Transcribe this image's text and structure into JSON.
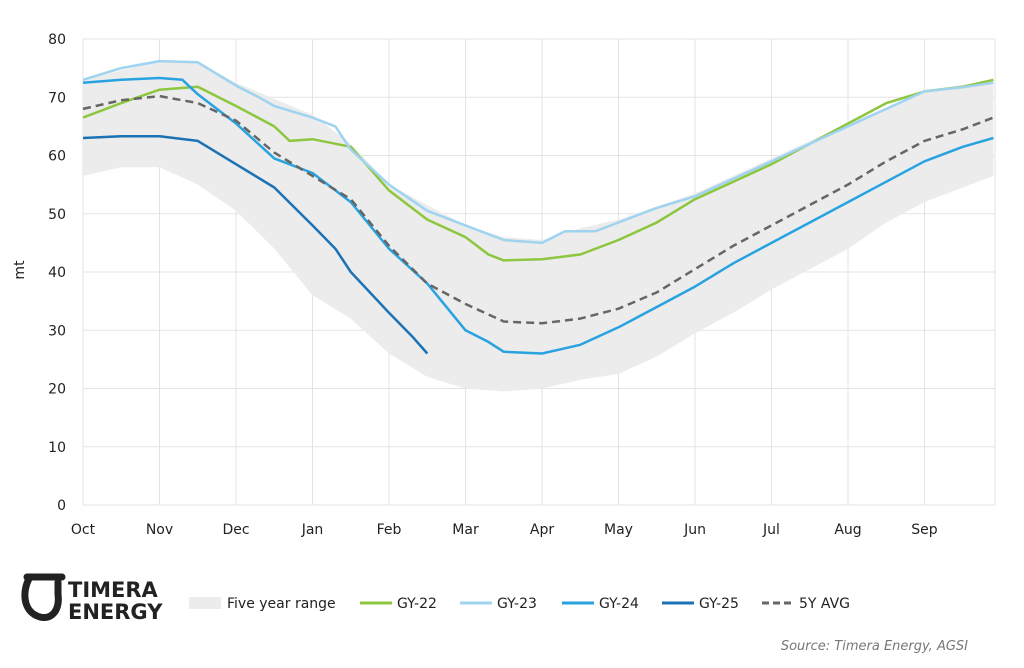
{
  "chart_data": {
    "type": "line",
    "title": "",
    "xlabel": "",
    "ylabel": "mt",
    "ylim": [
      0,
      80
    ],
    "yticks": [
      0,
      10,
      20,
      30,
      40,
      50,
      60,
      70,
      80
    ],
    "xticks": [
      "Oct",
      "Nov",
      "Dec",
      "Jan",
      "Feb",
      "Mar",
      "Apr",
      "May",
      "Jun",
      "Jul",
      "Aug",
      "Sep"
    ],
    "grid": true,
    "legend_position": "bottom",
    "range": {
      "name": "Five year range",
      "color": "#ececec",
      "upper": [
        [
          "Oct 01",
          73
        ],
        [
          "Nov 01",
          76.2
        ],
        [
          "Nov 16",
          76
        ],
        [
          "Dec 01",
          72.5
        ],
        [
          "Jan 01",
          67
        ],
        [
          "Jan 16",
          62
        ],
        [
          "Feb 01",
          55
        ],
        [
          "Mar 01",
          48
        ],
        [
          "Mar 16",
          46
        ],
        [
          "Apr 01",
          45.5
        ],
        [
          "Apr 16",
          47.5
        ],
        [
          "May 01",
          49
        ],
        [
          "Jun 01",
          53.5
        ],
        [
          "Jul 01",
          59.5
        ],
        [
          "Aug 01",
          65.5
        ],
        [
          "Sep 01",
          71
        ],
        [
          "Sep 28",
          73
        ]
      ],
      "lower": [
        [
          "Oct 01",
          56.5
        ],
        [
          "Oct 16",
          58
        ],
        [
          "Nov 01",
          58
        ],
        [
          "Nov 16",
          55
        ],
        [
          "Dec 01",
          50.5
        ],
        [
          "Dec 16",
          44
        ],
        [
          "Jan 01",
          36
        ],
        [
          "Jan 16",
          32
        ],
        [
          "Feb 01",
          26
        ],
        [
          "Feb 16",
          22
        ],
        [
          "Mar 01",
          20
        ],
        [
          "Mar 16",
          19.5
        ],
        [
          "Apr 01",
          20
        ],
        [
          "Apr 16",
          21.5
        ],
        [
          "May 01",
          22.5
        ],
        [
          "May 16",
          25.5
        ],
        [
          "Jun 01",
          29.5
        ],
        [
          "Jun 16",
          33
        ],
        [
          "Jul 01",
          37
        ],
        [
          "Jul 16",
          40.5
        ],
        [
          "Aug 01",
          44
        ],
        [
          "Aug 16",
          48.5
        ],
        [
          "Sep 01",
          52
        ],
        [
          "Sep 28",
          56.5
        ]
      ]
    },
    "series": [
      {
        "name": "GY-22",
        "color": "#8dc63f",
        "dashed": false,
        "points": [
          [
            "Oct 01",
            66.5
          ],
          [
            "Oct 16",
            69
          ],
          [
            "Nov 01",
            71.3
          ],
          [
            "Nov 16",
            71.8
          ],
          [
            "Dec 01",
            68.5
          ],
          [
            "Dec 16",
            65
          ],
          [
            "Dec 22",
            62.5
          ],
          [
            "Jan 01",
            62.8
          ],
          [
            "Jan 16",
            61.5
          ],
          [
            "Feb 01",
            54
          ],
          [
            "Feb 16",
            49
          ],
          [
            "Mar 01",
            46
          ],
          [
            "Mar 10",
            43
          ],
          [
            "Mar 16",
            42
          ],
          [
            "Apr 01",
            42.2
          ],
          [
            "Apr 16",
            43
          ],
          [
            "May 01",
            45.5
          ],
          [
            "May 16",
            48.5
          ],
          [
            "Jun 01",
            52.5
          ],
          [
            "Jun 16",
            55.5
          ],
          [
            "Jul 01",
            58.5
          ],
          [
            "Jul 16",
            62
          ],
          [
            "Aug 01",
            65.5
          ],
          [
            "Aug 16",
            69
          ],
          [
            "Sep 01",
            71
          ],
          [
            "Sep 16",
            71.8
          ],
          [
            "Sep 28",
            73
          ]
        ]
      },
      {
        "name": "GY-23",
        "color": "#9fd3f0",
        "dashed": false,
        "points": [
          [
            "Oct 01",
            73
          ],
          [
            "Oct 16",
            75
          ],
          [
            "Nov 01",
            76.2
          ],
          [
            "Nov 16",
            76
          ],
          [
            "Dec 01",
            72
          ],
          [
            "Dec 10",
            70
          ],
          [
            "Dec 16",
            68.5
          ],
          [
            "Jan 01",
            66.5
          ],
          [
            "Jan 10",
            65
          ],
          [
            "Jan 16",
            61
          ],
          [
            "Feb 01",
            55
          ],
          [
            "Feb 16",
            50.5
          ],
          [
            "Mar 01",
            48
          ],
          [
            "Mar 16",
            45.5
          ],
          [
            "Apr 01",
            45
          ],
          [
            "Apr 10",
            47
          ],
          [
            "Apr 22",
            47
          ],
          [
            "May 01",
            48.5
          ],
          [
            "May 16",
            51
          ],
          [
            "Jun 01",
            53
          ],
          [
            "Jun 16",
            56
          ],
          [
            "Jul 01",
            59
          ],
          [
            "Jul 16",
            62
          ],
          [
            "Aug 01",
            65
          ],
          [
            "Aug 16",
            68
          ],
          [
            "Sep 01",
            71
          ],
          [
            "Sep 16",
            71.7
          ],
          [
            "Sep 28",
            72.5
          ]
        ]
      },
      {
        "name": "GY-24",
        "color": "#29a3e0",
        "dashed": false,
        "points": [
          [
            "Oct 01",
            72.5
          ],
          [
            "Oct 16",
            73
          ],
          [
            "Nov 01",
            73.3
          ],
          [
            "Nov 10",
            73
          ],
          [
            "Nov 16",
            70.5
          ],
          [
            "Dec 01",
            65.5
          ],
          [
            "Dec 16",
            59.5
          ],
          [
            "Jan 01",
            57
          ],
          [
            "Jan 16",
            52
          ],
          [
            "Feb 01",
            44
          ],
          [
            "Feb 16",
            38
          ],
          [
            "Mar 01",
            30
          ],
          [
            "Mar 10",
            28
          ],
          [
            "Mar 16",
            26.3
          ],
          [
            "Apr 01",
            26
          ],
          [
            "Apr 16",
            27.5
          ],
          [
            "May 01",
            30.5
          ],
          [
            "May 16",
            34
          ],
          [
            "Jun 01",
            37.5
          ],
          [
            "Jun 16",
            41.5
          ],
          [
            "Jul 01",
            45
          ],
          [
            "Jul 16",
            48.5
          ],
          [
            "Aug 01",
            52
          ],
          [
            "Aug 16",
            55.5
          ],
          [
            "Sep 01",
            59
          ],
          [
            "Sep 16",
            61.5
          ],
          [
            "Sep 28",
            63
          ]
        ]
      },
      {
        "name": "GY-25",
        "color": "#1b72b5",
        "dashed": false,
        "points": [
          [
            "Oct 01",
            63
          ],
          [
            "Oct 16",
            63.3
          ],
          [
            "Nov 01",
            63.3
          ],
          [
            "Nov 16",
            62.5
          ],
          [
            "Dec 01",
            58.5
          ],
          [
            "Dec 16",
            54.5
          ],
          [
            "Jan 01",
            48
          ],
          [
            "Jan 10",
            44
          ],
          [
            "Jan 16",
            40
          ],
          [
            "Feb 01",
            33
          ],
          [
            "Feb 10",
            29
          ],
          [
            "Feb 16",
            26
          ]
        ]
      },
      {
        "name": "5Y AVG",
        "color": "#666666",
        "dashed": true,
        "points": [
          [
            "Oct 01",
            68
          ],
          [
            "Oct 16",
            69.5
          ],
          [
            "Nov 01",
            70.2
          ],
          [
            "Nov 16",
            69
          ],
          [
            "Dec 01",
            66
          ],
          [
            "Dec 16",
            60.5
          ],
          [
            "Jan 01",
            56.5
          ],
          [
            "Jan 16",
            52.5
          ],
          [
            "Feb 01",
            44.5
          ],
          [
            "Feb 16",
            38
          ],
          [
            "Mar 01",
            34.5
          ],
          [
            "Mar 16",
            31.5
          ],
          [
            "Apr 01",
            31.2
          ],
          [
            "Apr 16",
            32
          ],
          [
            "May 01",
            33.7
          ],
          [
            "May 16",
            36.5
          ],
          [
            "Jun 01",
            40.5
          ],
          [
            "Jun 16",
            44.5
          ],
          [
            "Jul 01",
            48
          ],
          [
            "Jul 16",
            51.5
          ],
          [
            "Aug 01",
            55
          ],
          [
            "Aug 16",
            59
          ],
          [
            "Sep 01",
            62.5
          ],
          [
            "Sep 16",
            64.5
          ],
          [
            "Sep 28",
            66.5
          ]
        ]
      }
    ]
  },
  "logo": {
    "line1": "TIMERA",
    "line2": "ENERGY"
  },
  "source": "Source: Timera Energy, AGSI"
}
